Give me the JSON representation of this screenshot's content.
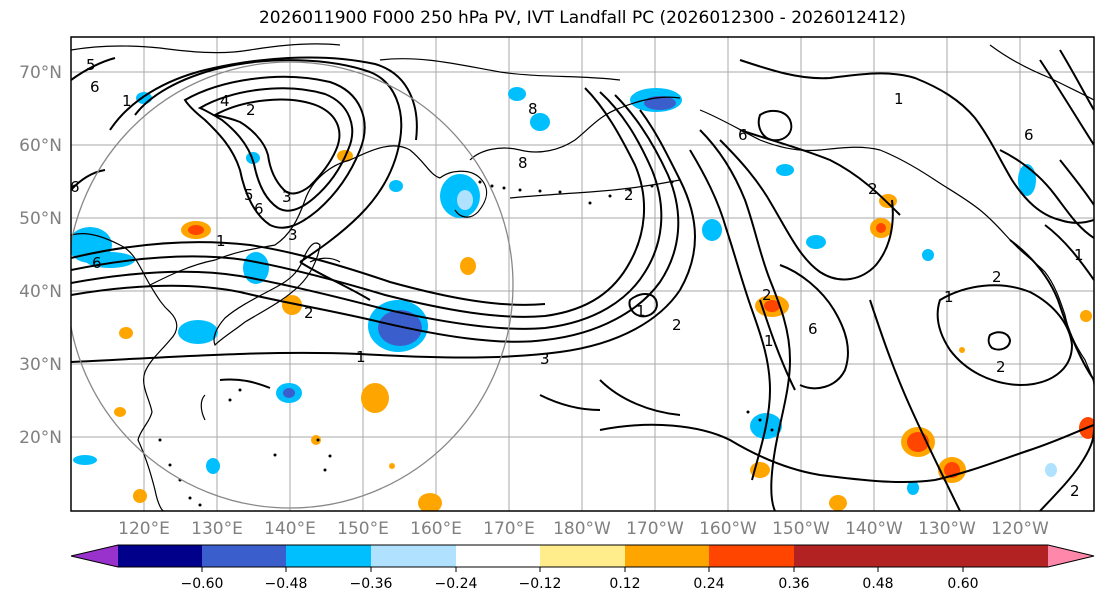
{
  "title": "2026011900 F000 250 hPa PV, IVT Landfall PC (2026012300 - 2026012412)",
  "lat_labels": [
    "70°N",
    "60°N",
    "50°N",
    "40°N",
    "30°N",
    "20°N"
  ],
  "lon_labels": [
    "120°E",
    "130°E",
    "140°E",
    "150°E",
    "160°E",
    "170°E",
    "180°W",
    "170°W",
    "160°W",
    "150°W",
    "140°W",
    "130°W",
    "120°W"
  ],
  "colorbar": {
    "ticks": [
      "−0.60",
      "−0.48",
      "−0.36",
      "−0.24",
      "−0.12",
      "0.12",
      "0.24",
      "0.36",
      "0.48",
      "0.60"
    ],
    "colors": [
      "#9932cc",
      "#00008b",
      "#3a5fcd",
      "#00bfff",
      "#b0e2ff",
      "#ffffff",
      "#ffec8b",
      "#ffa500",
      "#ff4500",
      "#b22222",
      "#ff88aa"
    ]
  },
  "contour_labels": [
    "5",
    "6",
    "1",
    "4",
    "2",
    "6",
    "3",
    "5",
    "3",
    "6",
    "1",
    "6",
    "2",
    "1",
    "3",
    "8",
    "8",
    "6",
    "2",
    "1",
    "2",
    "2",
    "1",
    "1",
    "6",
    "2",
    "2",
    "1",
    "2",
    "6",
    "2",
    "1"
  ]
}
